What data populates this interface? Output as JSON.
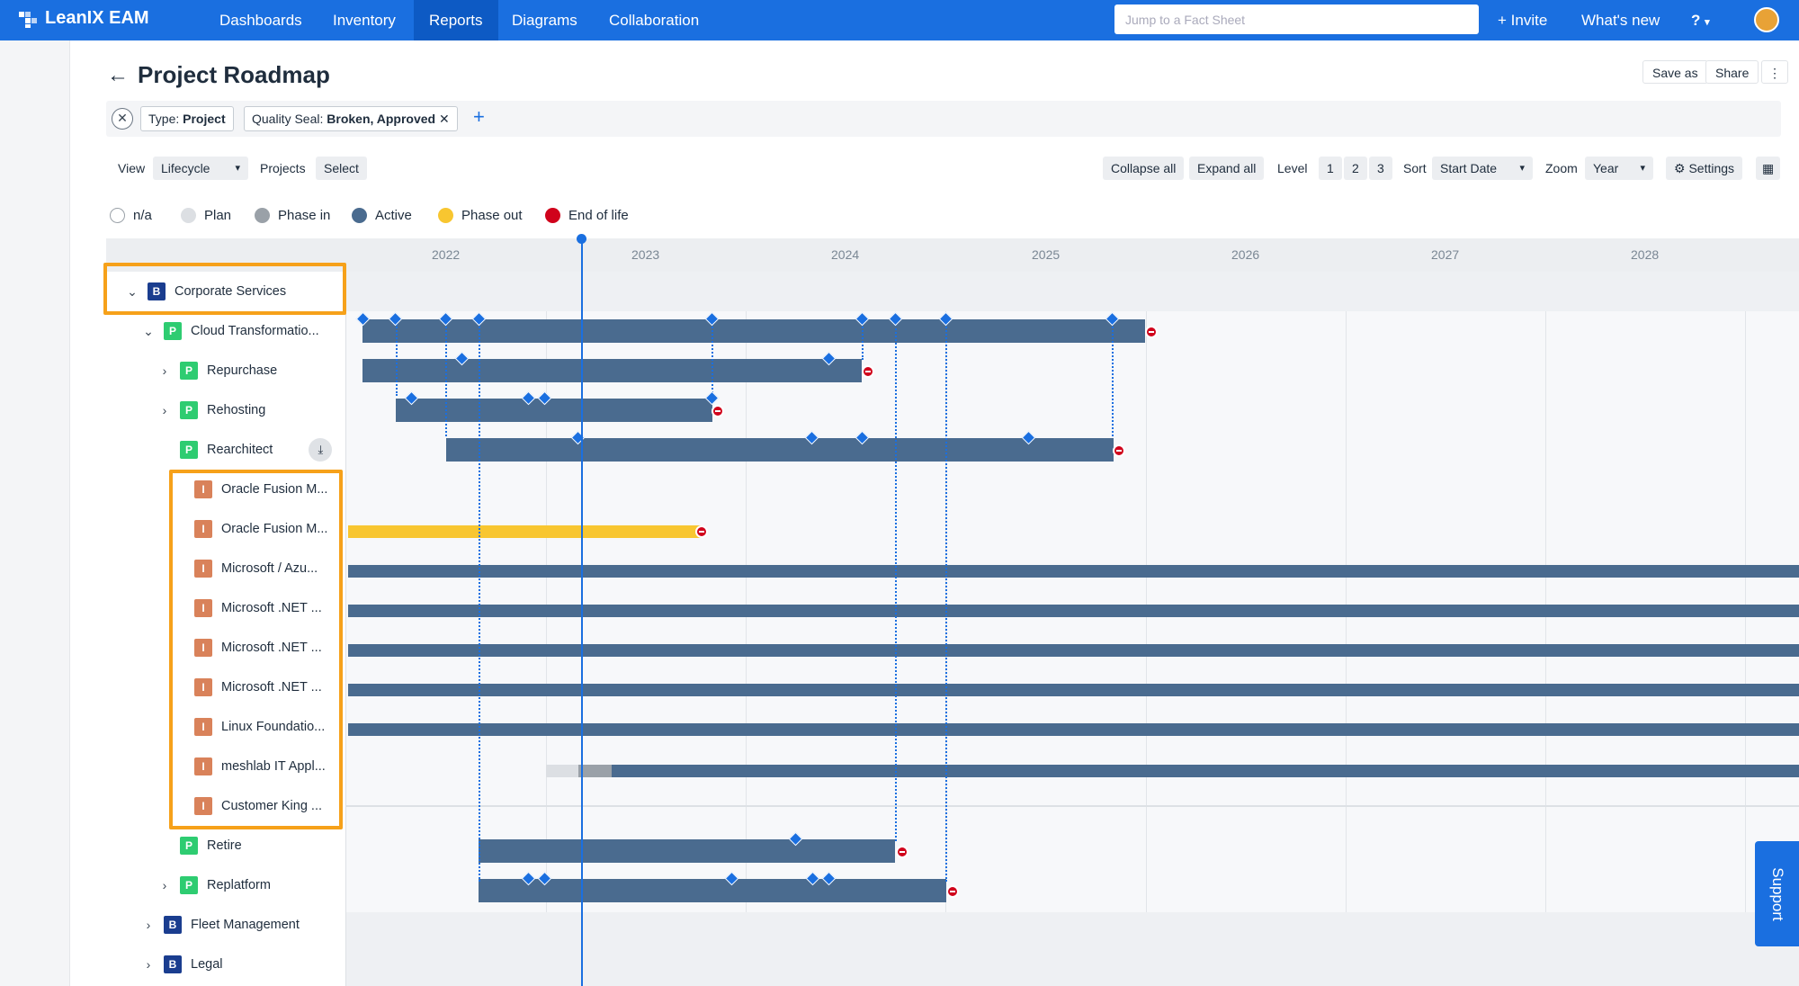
{
  "nav": {
    "brand": "LeanIX EAM",
    "items": [
      "Dashboards",
      "Inventory",
      "Reports",
      "Diagrams",
      "Collaboration"
    ],
    "active": "Reports",
    "search_placeholder": "Jump to a Fact Sheet",
    "invite": "+ Invite",
    "whats_new": "What's new",
    "help": "?"
  },
  "page": {
    "title": "Project Roadmap",
    "save_as": "Save as",
    "share": "Share",
    "more": "⋮"
  },
  "filters": {
    "type_key": "Type:",
    "type_val": "Project",
    "seal_key": "Quality Seal:",
    "seal_val": "Broken, Approved",
    "add": "+"
  },
  "toolbar": {
    "view_label": "View",
    "view_value": "Lifecycle",
    "projects_label": "Projects",
    "projects_value": "Select",
    "collapse_all": "Collapse all",
    "expand_all": "Expand all",
    "level_label": "Level",
    "levels": [
      "1",
      "2",
      "3"
    ],
    "sort_label": "Sort",
    "sort_value": "Start Date",
    "zoom_label": "Zoom",
    "zoom_value": "Year",
    "settings": "Settings"
  },
  "legend": [
    {
      "label": "n/a",
      "color": "#ffffff"
    },
    {
      "label": "Plan",
      "color": "#dcdfe3"
    },
    {
      "label": "Phase in",
      "color": "#9aa1a8"
    },
    {
      "label": "Active",
      "color": "#4a6b8f"
    },
    {
      "label": "Phase out",
      "color": "#f8c630"
    },
    {
      "label": "End of life",
      "color": "#d0021b"
    }
  ],
  "timeline": {
    "years": [
      "2022",
      "2023",
      "2024",
      "2025",
      "2026",
      "2027",
      "2028"
    ]
  },
  "tree": [
    {
      "label": "Corporate Services",
      "badge": "B"
    },
    {
      "label": "Cloud Transformatio...",
      "badge": "P"
    },
    {
      "label": "Repurchase",
      "badge": "P"
    },
    {
      "label": "Rehosting",
      "badge": "P"
    },
    {
      "label": "Rearchitect",
      "badge": "P"
    },
    {
      "label": "Oracle Fusion M...",
      "badge": "I"
    },
    {
      "label": "Oracle Fusion M...",
      "badge": "I"
    },
    {
      "label": "Microsoft / Azu...",
      "badge": "I"
    },
    {
      "label": "Microsoft .NET ...",
      "badge": "I"
    },
    {
      "label": "Microsoft .NET ...",
      "badge": "I"
    },
    {
      "label": "Microsoft .NET ...",
      "badge": "I"
    },
    {
      "label": "Linux Foundatio...",
      "badge": "I"
    },
    {
      "label": "meshlab IT Appl...",
      "badge": "I"
    },
    {
      "label": "Customer King ...",
      "badge": "I"
    },
    {
      "label": "Retire",
      "badge": "P"
    },
    {
      "label": "Replatform",
      "badge": "P"
    },
    {
      "label": "Fleet Management",
      "badge": "B"
    },
    {
      "label": "Legal",
      "badge": "B"
    }
  ],
  "support": "Support",
  "colors": {
    "brand": "#1a6fe0",
    "active": "#4a6b8f",
    "phase_out": "#f8c630",
    "end_of_life": "#d0021b",
    "business_badge": "#1a3d8f",
    "project_badge": "#2ecc71",
    "interface_badge": "#d9825a",
    "highlight": "#f6a11a"
  }
}
